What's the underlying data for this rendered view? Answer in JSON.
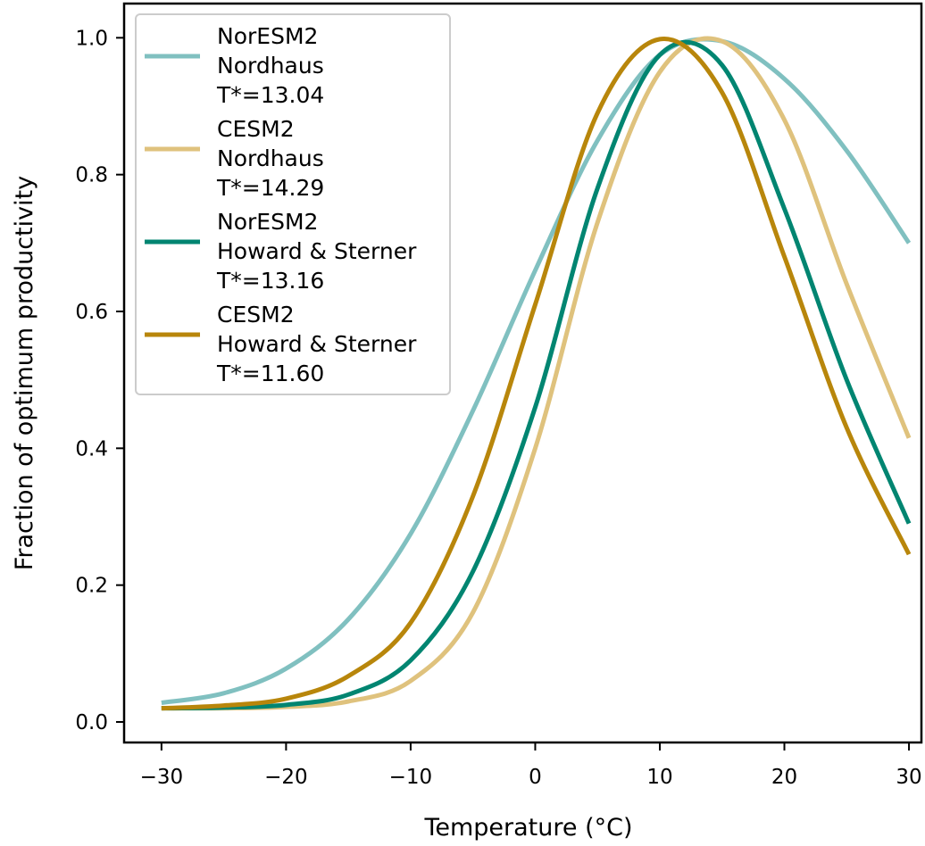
{
  "chart_data": {
    "type": "line",
    "title": "",
    "xlabel": "Temperature (°C)",
    "ylabel": "Fraction of optimum productivity",
    "xlim": [
      -33,
      31
    ],
    "ylim": [
      -0.03,
      1.05
    ],
    "xticks": [
      -30,
      -20,
      -10,
      0,
      10,
      20,
      30
    ],
    "xtick_labels": [
      "−30",
      "−20",
      "−10",
      "0",
      "10",
      "20",
      "30"
    ],
    "yticks": [
      0.0,
      0.2,
      0.4,
      0.6,
      0.8,
      1.0
    ],
    "ytick_labels": [
      "0.0",
      "0.2",
      "0.4",
      "0.6",
      "0.8",
      "1.0"
    ],
    "grid": false,
    "legend_position": "upper-left",
    "x": [
      -30,
      -25,
      -20,
      -15,
      -10,
      -5,
      0,
      5,
      10,
      15,
      20,
      25,
      30
    ],
    "series": [
      {
        "legend_lines": [
          "NorESM2",
          "Nordhaus",
          "T*=13.04"
        ],
        "color": "#80c0c0",
        "values": [
          0.028,
          0.042,
          0.078,
          0.15,
          0.275,
          0.455,
          0.66,
          0.85,
          0.975,
          0.995,
          0.94,
          0.835,
          0.7
        ]
      },
      {
        "legend_lines": [
          "CESM2",
          "Nordhaus",
          "T*=14.29"
        ],
        "color": "#dfc27d",
        "values": [
          0.02,
          0.02,
          0.022,
          0.03,
          0.06,
          0.16,
          0.4,
          0.73,
          0.95,
          0.995,
          0.88,
          0.64,
          0.415
        ]
      },
      {
        "legend_lines": [
          "NorESM2",
          "Howard & Sterner",
          "T*=13.16"
        ],
        "color": "#018571",
        "values": [
          0.02,
          0.021,
          0.025,
          0.04,
          0.09,
          0.22,
          0.46,
          0.78,
          0.975,
          0.96,
          0.75,
          0.5,
          0.29
        ]
      },
      {
        "legend_lines": [
          "CESM2",
          "Howard & Sterner",
          "T*=11.60"
        ],
        "color": "#b8860b",
        "values": [
          0.02,
          0.024,
          0.034,
          0.067,
          0.145,
          0.33,
          0.61,
          0.89,
          0.998,
          0.92,
          0.68,
          0.43,
          0.245
        ]
      }
    ]
  }
}
